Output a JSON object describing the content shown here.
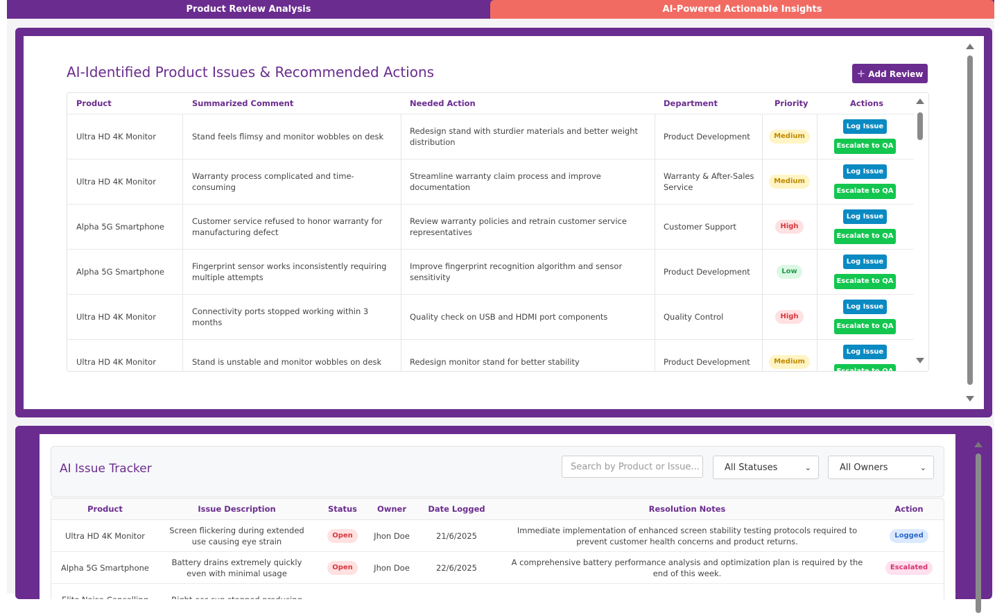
{
  "tabs": {
    "analysis": "Product Review Analysis",
    "insights": "AI-Powered Actionable Insights"
  },
  "issues_panel": {
    "title": "AI-Identified Product Issues & Recommended Actions",
    "add_review": "Add Review",
    "columns": [
      "Product",
      "Summarized Comment",
      "Needed Action",
      "Department",
      "Priority",
      "Actions"
    ],
    "log_label": "Log Issue",
    "escalate_label": "Escalate to QA",
    "rows": [
      {
        "product": "Ultra HD 4K Monitor",
        "comment": "Stand feels flimsy and monitor wobbles on desk",
        "action": "Redesign stand with sturdier materials and better weight distribution",
        "department": "Product Development",
        "priority": "Medium"
      },
      {
        "product": "Ultra HD 4K Monitor",
        "comment": "Warranty process complicated and time-consuming",
        "action": "Streamline warranty claim process and improve documentation",
        "department": "Warranty & After-Sales Service",
        "priority": "Medium"
      },
      {
        "product": "Alpha 5G Smartphone",
        "comment": "Customer service refused to honor warranty for manufacturing defect",
        "action": "Review warranty policies and retrain customer service representatives",
        "department": "Customer Support",
        "priority": "High"
      },
      {
        "product": "Alpha 5G Smartphone",
        "comment": "Fingerprint sensor works inconsistently requiring multiple attempts",
        "action": "Improve fingerprint recognition algorithm and sensor sensitivity",
        "department": "Product Development",
        "priority": "Low"
      },
      {
        "product": "Ultra HD 4K Monitor",
        "comment": "Connectivity ports stopped working within 3 months",
        "action": "Quality check on USB and HDMI port components",
        "department": "Quality Control",
        "priority": "High"
      },
      {
        "product": "Ultra HD 4K Monitor",
        "comment": "Stand is unstable and monitor wobbles on desk",
        "action": "Redesign monitor stand for better stability",
        "department": "Product Development",
        "priority": "Medium"
      }
    ]
  },
  "tracker": {
    "title": "AI Issue Tracker",
    "search_placeholder": "Search by Product or Issue...",
    "status_filter": "All Statuses",
    "owner_filter": "All Owners",
    "columns": [
      "Product",
      "Issue Description",
      "Status",
      "Owner",
      "Date Logged",
      "Resolution Notes",
      "Action"
    ],
    "rows": [
      {
        "product": "Ultra HD 4K Monitor",
        "issue": "Screen flickering during extended use causing eye strain",
        "status": "Open",
        "owner": "Jhon Doe",
        "date": "21/6/2025",
        "notes": "Immediate implementation of enhanced screen stability testing protocols required to prevent customer health concerns and product returns.",
        "action": "Logged"
      },
      {
        "product": "Alpha 5G Smartphone",
        "issue": "Battery drains extremely quickly even with minimal usage",
        "status": "Open",
        "owner": "Jhon Doe",
        "date": "22/6/2025",
        "notes": "A comprehensive battery performance analysis and optimization plan is required by the end of this week.",
        "action": "Escalated"
      },
      {
        "product": "Elite Noise-Cancelling",
        "issue": "Right ear cup stopped producing",
        "status": "",
        "owner": "",
        "date": "",
        "notes": "",
        "action": ""
      }
    ]
  }
}
